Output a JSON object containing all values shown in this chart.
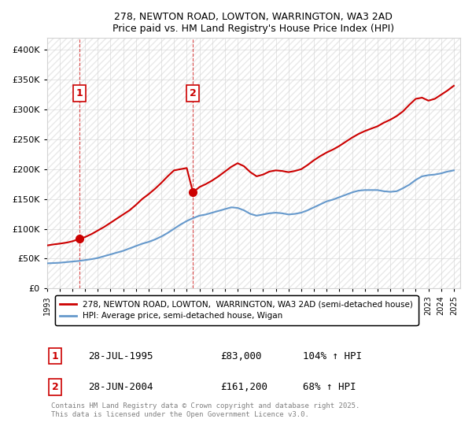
{
  "title_line1": "278, NEWTON ROAD, LOWTON, WARRINGTON, WA3 2AD",
  "title_line2": "Price paid vs. HM Land Registry's House Price Index (HPI)",
  "ylabel": "",
  "xlim_start": 1993.0,
  "xlim_end": 2025.5,
  "ylim_min": 0,
  "ylim_max": 420000,
  "yticks": [
    0,
    50000,
    100000,
    150000,
    200000,
    250000,
    300000,
    350000,
    400000
  ],
  "ytick_labels": [
    "£0",
    "£50K",
    "£100K",
    "£150K",
    "£200K",
    "£250K",
    "£300K",
    "£350K",
    "£400K"
  ],
  "hpi_color": "#6699cc",
  "price_color": "#cc0000",
  "sale1_x": 1995.57,
  "sale1_y": 83000,
  "sale2_x": 2004.49,
  "sale2_y": 161200,
  "annotation1_label": "1",
  "annotation2_label": "2",
  "legend_line1": "278, NEWTON ROAD, LOWTON,  WARRINGTON, WA3 2AD (semi-detached house)",
  "legend_line2": "HPI: Average price, semi-detached house, Wigan",
  "table_row1": [
    "1",
    "28-JUL-1995",
    "£83,000",
    "104% ↑ HPI"
  ],
  "table_row2": [
    "2",
    "28-JUN-2004",
    "£161,200",
    "68% ↑ HPI"
  ],
  "footnote": "Contains HM Land Registry data © Crown copyright and database right 2025.\nThis data is licensed under the Open Government Licence v3.0.",
  "hpi_x": [
    1993.0,
    1993.5,
    1994.0,
    1994.5,
    1995.0,
    1995.5,
    1996.0,
    1996.5,
    1997.0,
    1997.5,
    1998.0,
    1998.5,
    1999.0,
    1999.5,
    2000.0,
    2000.5,
    2001.0,
    2001.5,
    2002.0,
    2002.5,
    2003.0,
    2003.5,
    2004.0,
    2004.5,
    2005.0,
    2005.5,
    2006.0,
    2006.5,
    2007.0,
    2007.5,
    2008.0,
    2008.5,
    2009.0,
    2009.5,
    2010.0,
    2010.5,
    2011.0,
    2011.5,
    2012.0,
    2012.5,
    2013.0,
    2013.5,
    2014.0,
    2014.5,
    2015.0,
    2015.5,
    2016.0,
    2016.5,
    2017.0,
    2017.5,
    2018.0,
    2018.5,
    2019.0,
    2019.5,
    2020.0,
    2020.5,
    2021.0,
    2021.5,
    2022.0,
    2022.5,
    2023.0,
    2023.5,
    2024.0,
    2024.5,
    2025.0
  ],
  "hpi_y": [
    42000,
    42500,
    43000,
    44000,
    45000,
    46000,
    47500,
    49000,
    51000,
    54000,
    57000,
    60000,
    63000,
    67000,
    71000,
    75000,
    78000,
    82000,
    87000,
    93000,
    100000,
    107000,
    113000,
    118000,
    122000,
    124000,
    127000,
    130000,
    133000,
    136000,
    135000,
    131000,
    125000,
    122000,
    124000,
    126000,
    127000,
    126000,
    124000,
    125000,
    127000,
    131000,
    136000,
    141000,
    146000,
    149000,
    153000,
    157000,
    161000,
    164000,
    165000,
    165000,
    165000,
    163000,
    162000,
    163000,
    168000,
    174000,
    182000,
    188000,
    190000,
    191000,
    193000,
    196000,
    198000
  ],
  "price_x": [
    1993.0,
    1993.3,
    1993.6,
    1994.0,
    1994.3,
    1994.6,
    1995.0,
    1995.57,
    1996.0,
    1996.5,
    1997.0,
    1997.5,
    1998.0,
    1998.5,
    1999.0,
    1999.5,
    2000.0,
    2000.5,
    2001.0,
    2001.5,
    2002.0,
    2002.5,
    2003.0,
    2003.5,
    2004.0,
    2004.49,
    2005.0,
    2005.5,
    2006.0,
    2006.5,
    2007.0,
    2007.5,
    2008.0,
    2008.5,
    2009.0,
    2009.5,
    2010.0,
    2010.5,
    2011.0,
    2011.5,
    2012.0,
    2012.5,
    2013.0,
    2013.5,
    2014.0,
    2014.5,
    2015.0,
    2015.5,
    2016.0,
    2016.5,
    2017.0,
    2017.5,
    2018.0,
    2018.5,
    2019.0,
    2019.5,
    2020.0,
    2020.5,
    2021.0,
    2021.5,
    2022.0,
    2022.5,
    2023.0,
    2023.5,
    2024.0,
    2024.5,
    2025.0
  ],
  "price_y": [
    72000,
    73000,
    74000,
    75000,
    76000,
    77000,
    79000,
    83000,
    86000,
    91000,
    97000,
    103000,
    110000,
    117000,
    124000,
    131000,
    140000,
    150000,
    158000,
    167000,
    177000,
    188000,
    198000,
    200000,
    202000,
    161200,
    170000,
    175000,
    181000,
    188000,
    196000,
    204000,
    210000,
    205000,
    195000,
    188000,
    191000,
    196000,
    198000,
    197000,
    195000,
    197000,
    200000,
    207000,
    215000,
    222000,
    228000,
    233000,
    239000,
    246000,
    253000,
    259000,
    264000,
    268000,
    272000,
    278000,
    283000,
    289000,
    297000,
    308000,
    318000,
    320000,
    315000,
    318000,
    325000,
    332000,
    340000
  ]
}
